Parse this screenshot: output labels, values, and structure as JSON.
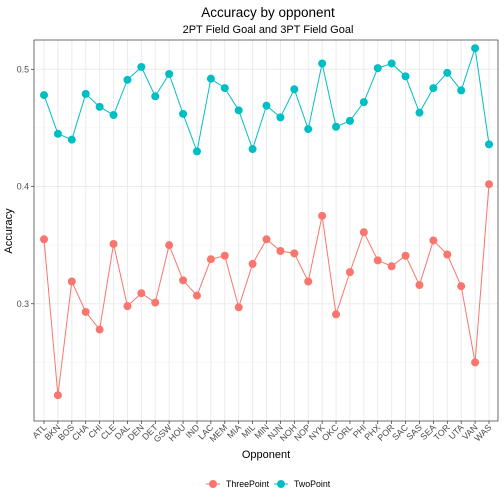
{
  "chart_data": {
    "type": "line",
    "title": "Accuracy by opponent",
    "subtitle": "2PT Field Goal and 3PT Field Goal",
    "xlabel": "Opponent",
    "ylabel": "Accuracy",
    "ylim": [
      0.2,
      0.525
    ],
    "yticks": [
      0.3,
      0.4,
      0.5
    ],
    "ytick_labels": [
      "0.3",
      "0.4",
      "0.5"
    ],
    "grid": true,
    "legend_position": "bottom",
    "categories": [
      "ATL",
      "BKN",
      "BOS",
      "CHA",
      "CHI",
      "CLE",
      "DAL",
      "DEN",
      "DET",
      "GSW",
      "HOU",
      "IND",
      "LAC",
      "MEM",
      "MIA",
      "MIL",
      "MIN",
      "NJN",
      "NOH",
      "NOP",
      "NYK",
      "OKC",
      "ORL",
      "PHI",
      "PHX",
      "POR",
      "SAC",
      "SAS",
      "SEA",
      "TOR",
      "UTA",
      "VAN",
      "WAS"
    ],
    "series": [
      {
        "name": "ThreePoint",
        "color": "#F8766D",
        "values": [
          0.355,
          0.222,
          0.319,
          0.293,
          0.278,
          0.351,
          0.298,
          0.309,
          0.301,
          0.35,
          0.32,
          0.307,
          0.338,
          0.341,
          0.297,
          0.334,
          0.355,
          0.345,
          0.343,
          0.319,
          0.375,
          0.291,
          0.327,
          0.361,
          0.337,
          0.332,
          0.341,
          0.316,
          0.354,
          0.342,
          0.315,
          0.25,
          0.402
        ]
      },
      {
        "name": "TwoPoint",
        "color": "#00BFC4",
        "values": [
          0.478,
          0.445,
          0.44,
          0.479,
          0.468,
          0.461,
          0.491,
          0.502,
          0.477,
          0.496,
          0.462,
          0.43,
          0.492,
          0.484,
          0.465,
          0.432,
          0.469,
          0.459,
          0.483,
          0.449,
          0.505,
          0.451,
          0.456,
          0.472,
          0.501,
          0.505,
          0.494,
          0.463,
          0.484,
          0.497,
          0.482,
          0.518,
          0.436
        ]
      }
    ]
  }
}
